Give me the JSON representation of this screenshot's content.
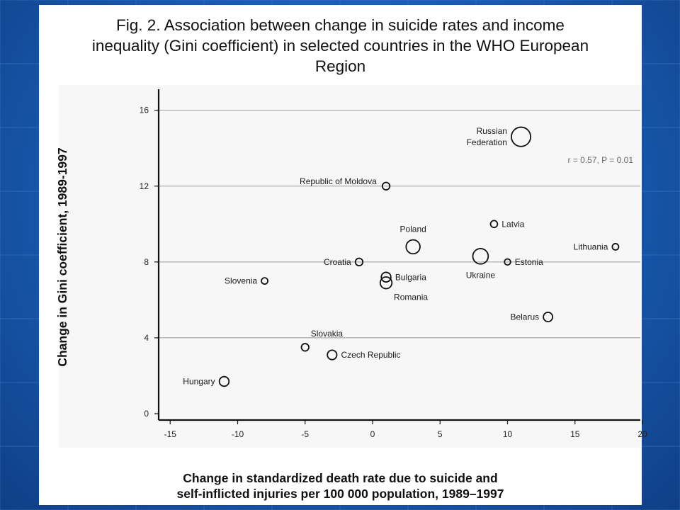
{
  "slide": {
    "colors": {
      "background": "#1b5fb8",
      "panel": "#ffffff",
      "plot_background": "#f7f7f7",
      "grid": "#9a9a9a",
      "marker_stroke": "#111111"
    }
  },
  "figure": {
    "title": "Fig. 2. Association between change in suicide rates and income\ninequality (Gini coefficient) in selected countries in the WHO European\nRegion"
  },
  "chart_data": {
    "type": "scatter",
    "title": "Fig. 2. Association between change in suicide rates and income inequality (Gini coefficient) in selected countries in the WHO European Region",
    "xlabel": "Change in standardized death rate due to suicide and\nself-inflicted injuries per 100 000 population, 1989–1997",
    "ylabel": "Change in Gini coefficient, 1989-1997",
    "xlim": [
      -15.5,
      21
    ],
    "ylim": [
      -0.5,
      17
    ],
    "x_ticks": [
      -15,
      -10,
      -5,
      0,
      5,
      10,
      15,
      20
    ],
    "x_tick_labels": [
      "-15",
      "-10",
      "-5",
      "0",
      "5",
      "10",
      "15",
      "20"
    ],
    "y_ticks": [
      0,
      4,
      8,
      12,
      16
    ],
    "y_tick_labels": [
      "0",
      "4",
      "8",
      "12",
      "16"
    ],
    "grid": "horizontal",
    "annotation": "r = 0.57, P = 0.01",
    "points": [
      {
        "label": "Russian\nFederation",
        "x": 11.0,
        "y": 14.6,
        "size": 10,
        "label_side": "left"
      },
      {
        "label": "Republic of Moldova",
        "x": 1.0,
        "y": 12.0,
        "size": 1.5,
        "label_side": "left-above"
      },
      {
        "label": "Poland",
        "x": 3.0,
        "y": 8.8,
        "size": 5.2,
        "label_side": "above"
      },
      {
        "label": "Latvia",
        "x": 9.0,
        "y": 10.0,
        "size": 1.3,
        "label_side": "right"
      },
      {
        "label": "Lithuania",
        "x": 18.0,
        "y": 8.8,
        "size": 1.1,
        "label_side": "left"
      },
      {
        "label": "Croatia",
        "x": -1.0,
        "y": 8.0,
        "size": 1.5,
        "label_side": "left"
      },
      {
        "label": "Ukraine",
        "x": 8.0,
        "y": 8.3,
        "size": 6.4,
        "label_side": "below"
      },
      {
        "label": "Estonia",
        "x": 10.0,
        "y": 8.0,
        "size": 1.0,
        "label_side": "right"
      },
      {
        "label": "Slovenia",
        "x": -8.0,
        "y": 7.0,
        "size": 1.1,
        "label_side": "left"
      },
      {
        "label": "Bulgaria",
        "x": 1.0,
        "y": 7.2,
        "size": 2.5,
        "label_side": "right"
      },
      {
        "label": "Romania",
        "x": 1.0,
        "y": 6.9,
        "size": 3.7,
        "label_side": "below-right"
      },
      {
        "label": "Belarus",
        "x": 13.0,
        "y": 5.1,
        "size": 2.3,
        "label_side": "left"
      },
      {
        "label": "Slovakia",
        "x": -5.0,
        "y": 3.5,
        "size": 1.5,
        "label_side": "above-right"
      },
      {
        "label": "Czech Republic",
        "x": -3.0,
        "y": 3.1,
        "size": 2.4,
        "label_side": "right"
      },
      {
        "label": "Hungary",
        "x": -11.0,
        "y": 1.7,
        "size": 2.5,
        "label_side": "left"
      }
    ]
  }
}
